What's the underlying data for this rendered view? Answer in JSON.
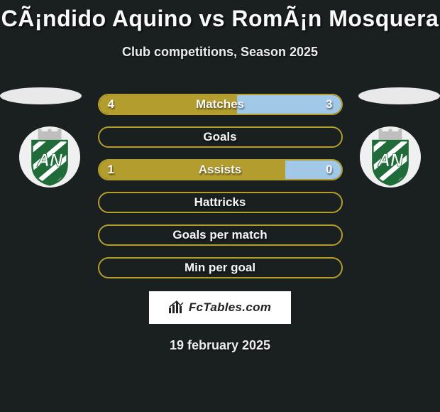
{
  "title": "CÃ¡ndido Aquino vs RomÃ¡n Mosquera",
  "subtitle": "Club competitions, Season 2025",
  "date": "19 february 2025",
  "watermark_text": "FcTables.com",
  "colors": {
    "background": "#1a1f1f",
    "ellipse": "#e9e9e9",
    "crest_bg": "#f0f0f0",
    "bar_border": "#b29d2e",
    "left_fill": "#b29d2e",
    "right_fill": "#a2c8e8",
    "text": "#f6f6f6"
  },
  "stats": [
    {
      "label": "Matches",
      "left_value": "4",
      "right_value": "3",
      "left_pct": 57.1,
      "right_pct": 42.9,
      "show_values": true
    },
    {
      "label": "Goals",
      "left_value": "",
      "right_value": "",
      "left_pct": 0,
      "right_pct": 0,
      "show_values": false
    },
    {
      "label": "Assists",
      "left_value": "1",
      "right_value": "0",
      "left_pct": 77,
      "right_pct": 23,
      "show_values": true
    },
    {
      "label": "Hattricks",
      "left_value": "",
      "right_value": "",
      "left_pct": 0,
      "right_pct": 0,
      "show_values": false
    },
    {
      "label": "Goals per match",
      "left_value": "",
      "right_value": "",
      "left_pct": 0,
      "right_pct": 0,
      "show_values": false
    },
    {
      "label": "Min per goal",
      "left_value": "",
      "right_value": "",
      "left_pct": 0,
      "right_pct": 0,
      "show_values": false
    }
  ],
  "crest": {
    "primary": "#1f6b3a",
    "stripe": "#ffffff",
    "tower": "#bfbfbf",
    "letters": "AN"
  }
}
